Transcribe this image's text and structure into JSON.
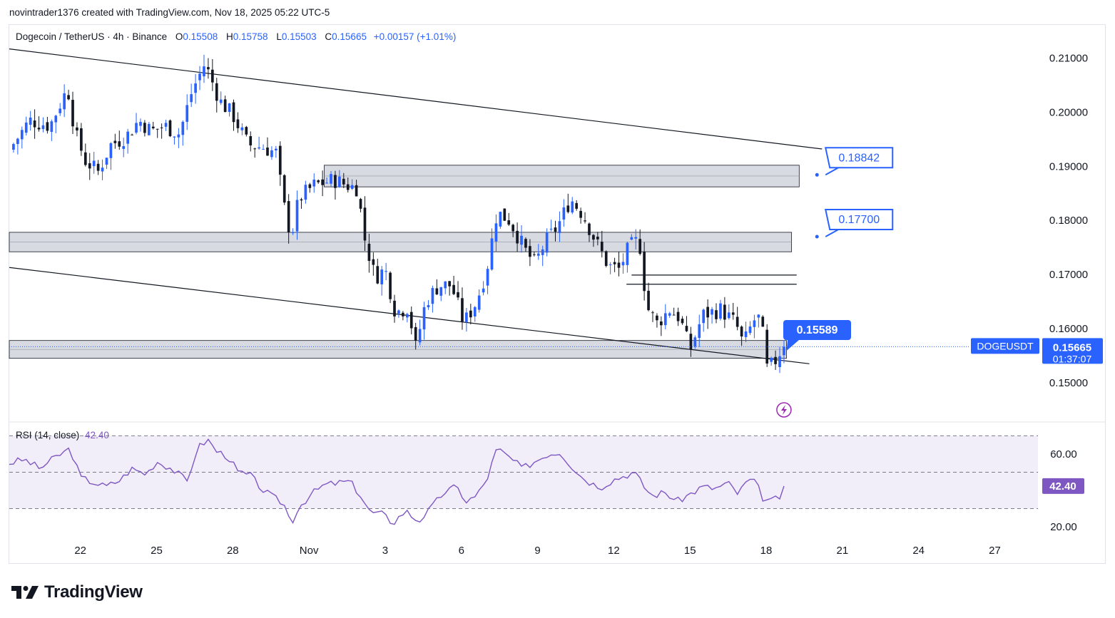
{
  "header": {
    "attribution": "novintrader1376 created with TradingView.com, Nov 18, 2025 05:22 UTC-5"
  },
  "legend": {
    "symbol": "Dogecoin / TetherUS · 4h · Binance",
    "open_label": "O",
    "open": "0.15508",
    "high_label": "H",
    "high": "0.15758",
    "low_label": "L",
    "low": "0.15503",
    "close_label": "C",
    "close": "0.15665",
    "change": "+0.00157 (+1.01%)"
  },
  "rsi_legend": {
    "name": "RSI (14, close)",
    "value": "42.40"
  },
  "colors": {
    "up": "#2962ff",
    "down": "#131722",
    "rsi_line": "#7e57c2",
    "rsi_band": "#7e57c2",
    "zone": "#d1d4dc",
    "label_bg": "#2962ff"
  },
  "brand": {
    "name": "TradingView"
  },
  "chart_data": [
    {
      "type": "candlestick",
      "symbol_tag": "DOGEUSDT",
      "timeframe": "4h",
      "current_price": "0.15665",
      "countdown": "01:37:07",
      "ylim": [
        0.143,
        0.216
      ],
      "y_ticks": [
        "0.21000",
        "0.20000",
        "0.19000",
        "0.18000",
        "0.17000",
        "0.16000",
        "0.15000"
      ],
      "x_ticks": [
        "22",
        "25",
        "28",
        "Nov",
        "3",
        "6",
        "9",
        "12",
        "15",
        "18",
        "21",
        "24",
        "27"
      ],
      "xlim_days": [
        19.2,
        59.7
      ],
      "x_tick_days": [
        22,
        25,
        28,
        31,
        34,
        37,
        40,
        43,
        46,
        49,
        52,
        55,
        58
      ],
      "price_path": [
        [
          19.2,
          0.193
        ],
        [
          20.0,
          0.1985
        ],
        [
          20.8,
          0.1975
        ],
        [
          21.5,
          0.2045
        ],
        [
          21.8,
          0.196
        ],
        [
          22.2,
          0.191
        ],
        [
          22.7,
          0.189
        ],
        [
          23.2,
          0.194
        ],
        [
          23.8,
          0.1955
        ],
        [
          24.3,
          0.1985
        ],
        [
          24.8,
          0.1965
        ],
        [
          25.3,
          0.1975
        ],
        [
          25.9,
          0.196
        ],
        [
          26.4,
          0.204
        ],
        [
          26.9,
          0.209
        ],
        [
          27.5,
          0.202
        ],
        [
          28.0,
          0.1995
        ],
        [
          28.6,
          0.194
        ],
        [
          29.2,
          0.1935
        ],
        [
          29.7,
          0.1925
        ],
        [
          30.0,
          0.183
        ],
        [
          30.3,
          0.177
        ],
        [
          30.6,
          0.184
        ],
        [
          31.2,
          0.1865
        ],
        [
          32.0,
          0.1875
        ],
        [
          32.5,
          0.1865
        ],
        [
          32.9,
          0.186
        ],
        [
          33.2,
          0.1765
        ],
        [
          33.6,
          0.1695
        ],
        [
          34.0,
          0.171
        ],
        [
          34.4,
          0.163
        ],
        [
          34.9,
          0.164
        ],
        [
          35.2,
          0.1565
        ],
        [
          35.6,
          0.165
        ],
        [
          36.1,
          0.168
        ],
        [
          36.6,
          0.168
        ],
        [
          37.1,
          0.161
        ],
        [
          37.6,
          0.165
        ],
        [
          38.0,
          0.171
        ],
        [
          38.4,
          0.1815
        ],
        [
          38.9,
          0.18
        ],
        [
          39.5,
          0.1745
        ],
        [
          39.9,
          0.172
        ],
        [
          40.3,
          0.176
        ],
        [
          40.8,
          0.179
        ],
        [
          41.3,
          0.184
        ],
        [
          41.8,
          0.181
        ],
        [
          42.3,
          0.176
        ],
        [
          42.8,
          0.1715
        ],
        [
          43.2,
          0.171
        ],
        [
          43.6,
          0.175
        ],
        [
          44.0,
          0.1765
        ],
        [
          44.3,
          0.164
        ],
        [
          44.7,
          0.161
        ],
        [
          45.2,
          0.1635
        ],
        [
          45.6,
          0.162
        ],
        [
          46.0,
          0.156
        ],
        [
          46.5,
          0.1625
        ],
        [
          47.2,
          0.1635
        ],
        [
          47.8,
          0.161
        ],
        [
          48.1,
          0.157
        ],
        [
          48.5,
          0.1615
        ],
        [
          48.8,
          0.162
        ],
        [
          49.0,
          0.1525
        ],
        [
          49.3,
          0.1535
        ],
        [
          49.6,
          0.1562
        ],
        [
          49.7,
          0.15665
        ]
      ],
      "zones": [
        {
          "name": "resistance-zone-upper",
          "days": [
            31.6,
            50.3
          ],
          "price": [
            0.1862,
            0.1902
          ]
        },
        {
          "name": "resistance-zone-mid",
          "days": [
            19.2,
            50.0
          ],
          "price": [
            0.1742,
            0.1778
          ]
        },
        {
          "name": "support-zone",
          "days": [
            19.2,
            49.8
          ],
          "price": [
            0.1545,
            0.1578
          ]
        }
      ],
      "trendlines": [
        {
          "name": "channel-upper-line",
          "from": [
            19.2,
            0.2117
          ],
          "to": [
            51.2,
            0.1932
          ]
        },
        {
          "name": "channel-lower-line",
          "from": [
            19.2,
            0.1713
          ],
          "to": [
            50.7,
            0.1535
          ]
        },
        {
          "name": "level-line-1",
          "from": [
            43.7,
            0.1699
          ],
          "to": [
            50.2,
            0.1699
          ]
        },
        {
          "name": "level-line-2",
          "from": [
            43.5,
            0.1682
          ],
          "to": [
            50.2,
            0.1682
          ]
        }
      ],
      "annotations": [
        {
          "text": "0.18842",
          "target_price": 0.18842,
          "target_day": 51.0
        },
        {
          "text": "0.17700",
          "target_price": 0.177,
          "target_day": 51.0
        },
        {
          "text": "0.15589",
          "target_price": 0.15589,
          "target_day": 49.8
        }
      ]
    },
    {
      "type": "line",
      "name": "RSI (14, close)",
      "last_value": "42.40",
      "ylim": [
        13.0,
        76.0
      ],
      "y_ticks": [
        "60.00",
        "20.00"
      ],
      "band": [
        30,
        70
      ],
      "midline": 50,
      "points": [
        [
          19.2,
          55
        ],
        [
          19.8,
          57
        ],
        [
          20.4,
          52
        ],
        [
          21.0,
          58
        ],
        [
          21.6,
          63
        ],
        [
          22.0,
          47
        ],
        [
          22.6,
          44
        ],
        [
          23.0,
          42
        ],
        [
          23.6,
          46
        ],
        [
          24.0,
          52
        ],
        [
          24.6,
          49
        ],
        [
          25.0,
          56
        ],
        [
          25.6,
          52
        ],
        [
          26.2,
          45
        ],
        [
          26.6,
          63
        ],
        [
          27.0,
          68
        ],
        [
          27.4,
          61
        ],
        [
          27.8,
          59
        ],
        [
          28.2,
          50
        ],
        [
          28.7,
          48
        ],
        [
          29.2,
          40
        ],
        [
          29.6,
          36
        ],
        [
          30.0,
          33
        ],
        [
          30.3,
          22
        ],
        [
          30.6,
          31
        ],
        [
          31.1,
          38
        ],
        [
          31.6,
          43
        ],
        [
          32.1,
          44
        ],
        [
          32.6,
          45
        ],
        [
          33.0,
          38
        ],
        [
          33.4,
          28
        ],
        [
          33.9,
          27
        ],
        [
          34.3,
          22
        ],
        [
          34.8,
          29
        ],
        [
          35.3,
          23
        ],
        [
          35.8,
          30
        ],
        [
          36.3,
          39
        ],
        [
          36.8,
          42
        ],
        [
          37.2,
          34
        ],
        [
          37.6,
          37
        ],
        [
          38.0,
          46
        ],
        [
          38.4,
          63
        ],
        [
          38.9,
          58
        ],
        [
          39.4,
          52
        ],
        [
          39.9,
          56
        ],
        [
          40.4,
          60
        ],
        [
          40.9,
          61
        ],
        [
          41.3,
          54
        ],
        [
          41.7,
          48
        ],
        [
          42.1,
          44
        ],
        [
          42.5,
          42
        ],
        [
          43.0,
          46
        ],
        [
          43.4,
          48
        ],
        [
          43.8,
          50
        ],
        [
          44.2,
          42
        ],
        [
          44.5,
          37
        ],
        [
          45.0,
          39
        ],
        [
          45.5,
          34
        ],
        [
          46.0,
          38
        ],
        [
          46.5,
          42
        ],
        [
          47.0,
          41
        ],
        [
          47.5,
          44
        ],
        [
          47.9,
          38
        ],
        [
          48.3,
          46
        ],
        [
          48.6,
          44
        ],
        [
          48.9,
          35
        ],
        [
          49.2,
          34
        ],
        [
          49.6,
          37
        ],
        [
          49.7,
          42.4
        ]
      ]
    }
  ]
}
